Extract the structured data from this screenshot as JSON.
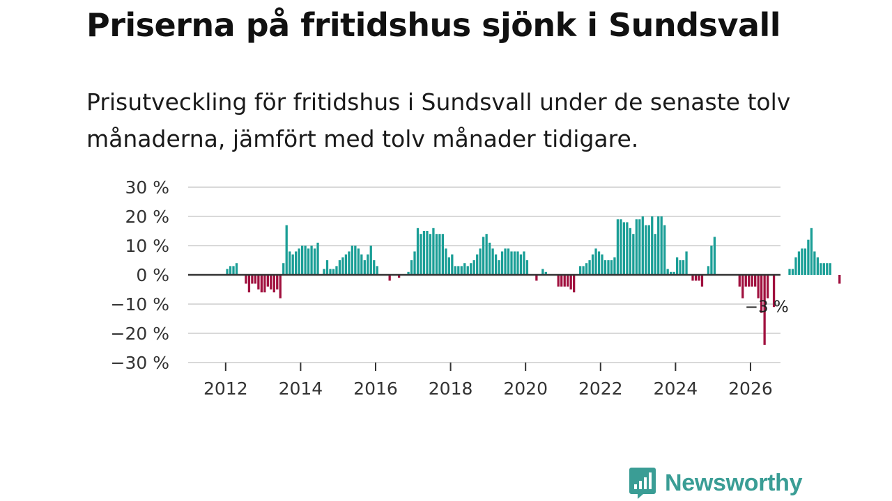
{
  "title": "Priserna på fritidshus sjönk i Sundsvall",
  "subtitle": "Prisutveckling för fritidshus i Sundsvall under de senaste tolv månaderna, jämfört med tolv månader tidigare.",
  "brand": {
    "name": "Newsworthy",
    "color": "#3a9d95"
  },
  "colors": {
    "positive": "#1a9e96",
    "negative": "#a0103e",
    "grid": "#d9d9d9",
    "zero": "#333333"
  },
  "chart_data": {
    "type": "bar",
    "title": "Priserna på fritidshus sjönk i Sundsvall",
    "xlabel": "",
    "ylabel": "",
    "ylim": [
      -30,
      30
    ],
    "xlim": [
      2011,
      2026.8
    ],
    "y_ticks": [
      {
        "value": 30,
        "label": "30 %"
      },
      {
        "value": 20,
        "label": "20 %"
      },
      {
        "value": 10,
        "label": "10 %"
      },
      {
        "value": 0,
        "label": "0 %"
      },
      {
        "value": -10,
        "label": "−10 %"
      },
      {
        "value": -20,
        "label": "−20 %"
      },
      {
        "value": -30,
        "label": "−30 %"
      }
    ],
    "x_ticks": [
      {
        "value": 2012,
        "label": "2012"
      },
      {
        "value": 2014,
        "label": "2014"
      },
      {
        "value": 2016,
        "label": "2016"
      },
      {
        "value": 2018,
        "label": "2018"
      },
      {
        "value": 2020,
        "label": "2020"
      },
      {
        "value": 2022,
        "label": "2022"
      },
      {
        "value": 2024,
        "label": "2024"
      },
      {
        "value": 2026,
        "label": "2026"
      }
    ],
    "start": {
      "year": 2012,
      "month": 1
    },
    "frequency": "monthly",
    "values": [
      2,
      3,
      3,
      4,
      0,
      0,
      -3,
      -6,
      -3,
      -3,
      -5,
      -6,
      -6,
      -4,
      -5,
      -6,
      -5,
      -8,
      4,
      17,
      8,
      7,
      8,
      9,
      10,
      10,
      9,
      10,
      9,
      11,
      0,
      2,
      5,
      2,
      2,
      3,
      5,
      6,
      7,
      8,
      10,
      10,
      9,
      7,
      5,
      7,
      10,
      5,
      3,
      0,
      0,
      0,
      -2,
      0,
      0,
      -1,
      0,
      0,
      1,
      5,
      8,
      16,
      14,
      15,
      15,
      14,
      16,
      14,
      14,
      14,
      9,
      6,
      7,
      3,
      3,
      3,
      4,
      3,
      4,
      5,
      7,
      9,
      13,
      14,
      11,
      9,
      7,
      5,
      8,
      9,
      9,
      8,
      8,
      8,
      7,
      8,
      5,
      0,
      0,
      -2,
      0,
      2,
      1,
      0,
      0,
      0,
      -4,
      -4,
      -4,
      -4,
      -5,
      -6,
      0,
      3,
      3,
      4,
      5,
      7,
      9,
      8,
      7,
      5,
      5,
      5,
      6,
      19,
      19,
      18,
      18,
      16,
      14,
      19,
      19,
      20,
      17,
      17,
      20,
      14,
      20,
      20,
      17,
      2,
      1,
      1,
      6,
      5,
      5,
      8,
      0,
      -2,
      -2,
      -2,
      -4,
      0,
      3,
      10,
      13,
      0,
      0,
      0,
      0,
      0,
      0,
      0,
      -4,
      -8,
      -4,
      -4,
      -4,
      -4,
      -8,
      -13,
      -24,
      -8,
      0,
      -11,
      0,
      0,
      0,
      0,
      2,
      2,
      6,
      8,
      9,
      9,
      12,
      16,
      8,
      6,
      4,
      4,
      4,
      4,
      0,
      0,
      -3
    ],
    "annotations": [
      {
        "x": 2026.33,
        "y": -3,
        "text": "−3 %"
      }
    ]
  }
}
